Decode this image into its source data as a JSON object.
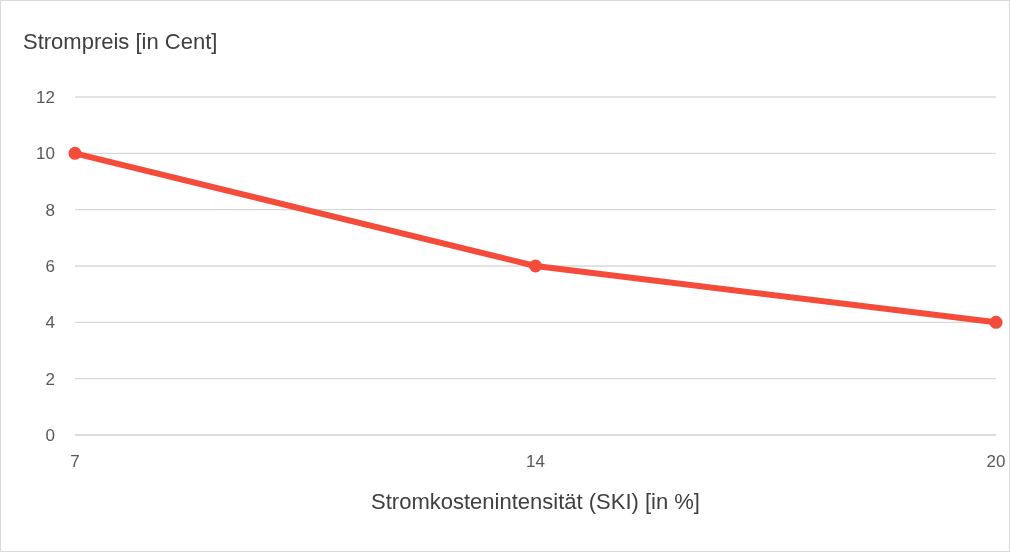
{
  "chart_data": {
    "type": "line",
    "ylabel": "Strompreis [in Cent]",
    "xlabel": "Stromkostenintensität (SKI) [in %]",
    "categories": [
      "7",
      "14",
      "20"
    ],
    "series": [
      {
        "color": "#f44b3a",
        "values": [
          10,
          6,
          4
        ]
      }
    ],
    "ylim": [
      0,
      12
    ],
    "yticks": [
      0,
      2,
      4,
      6,
      8,
      10,
      12
    ],
    "grid": "y",
    "legend": false,
    "marker": "circle",
    "line_style": "solid"
  }
}
